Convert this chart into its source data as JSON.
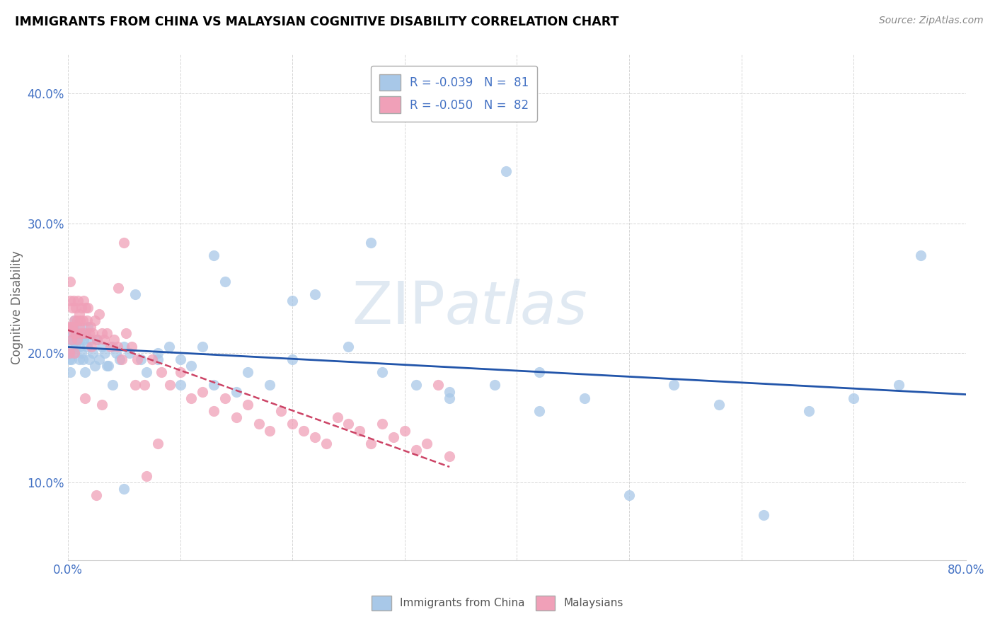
{
  "title": "IMMIGRANTS FROM CHINA VS MALAYSIAN COGNITIVE DISABILITY CORRELATION CHART",
  "source": "Source: ZipAtlas.com",
  "ylabel": "Cognitive Disability",
  "xlim": [
    0.0,
    0.8
  ],
  "ylim": [
    0.04,
    0.43
  ],
  "xticks": [
    0.0,
    0.1,
    0.2,
    0.3,
    0.4,
    0.5,
    0.6,
    0.7,
    0.8
  ],
  "yticks": [
    0.1,
    0.2,
    0.3,
    0.4
  ],
  "ytick_labels": [
    "10.0%",
    "20.0%",
    "30.0%",
    "40.0%"
  ],
  "legend_R1": "R = -0.039",
  "legend_N1": "N =  81",
  "legend_R2": "R = -0.050",
  "legend_N2": "N =  82",
  "color_china": "#a8c8e8",
  "color_malaysia": "#f0a0b8",
  "trendline_color_china": "#2255aa",
  "trendline_color_malaysia": "#cc4466",
  "background_color": "#ffffff",
  "china_x": [
    0.001,
    0.002,
    0.002,
    0.003,
    0.003,
    0.004,
    0.004,
    0.005,
    0.005,
    0.006,
    0.006,
    0.007,
    0.007,
    0.008,
    0.008,
    0.009,
    0.01,
    0.01,
    0.011,
    0.012,
    0.013,
    0.014,
    0.015,
    0.016,
    0.017,
    0.018,
    0.019,
    0.02,
    0.022,
    0.024,
    0.026,
    0.028,
    0.03,
    0.033,
    0.036,
    0.04,
    0.043,
    0.046,
    0.05,
    0.055,
    0.06,
    0.065,
    0.07,
    0.08,
    0.09,
    0.1,
    0.11,
    0.12,
    0.13,
    0.14,
    0.15,
    0.16,
    0.18,
    0.2,
    0.22,
    0.25,
    0.28,
    0.31,
    0.34,
    0.38,
    0.42,
    0.46,
    0.5,
    0.54,
    0.58,
    0.62,
    0.66,
    0.7,
    0.74,
    0.76,
    0.34,
    0.39,
    0.27,
    0.13,
    0.42,
    0.1,
    0.2,
    0.05,
    0.08,
    0.04,
    0.035
  ],
  "china_y": [
    0.195,
    0.2,
    0.185,
    0.21,
    0.195,
    0.215,
    0.205,
    0.22,
    0.21,
    0.225,
    0.2,
    0.215,
    0.205,
    0.22,
    0.21,
    0.215,
    0.205,
    0.195,
    0.21,
    0.2,
    0.195,
    0.21,
    0.185,
    0.215,
    0.205,
    0.22,
    0.195,
    0.21,
    0.2,
    0.19,
    0.21,
    0.195,
    0.205,
    0.2,
    0.19,
    0.205,
    0.2,
    0.195,
    0.205,
    0.2,
    0.245,
    0.195,
    0.185,
    0.195,
    0.205,
    0.175,
    0.19,
    0.205,
    0.175,
    0.255,
    0.17,
    0.185,
    0.175,
    0.195,
    0.245,
    0.205,
    0.185,
    0.175,
    0.17,
    0.175,
    0.155,
    0.165,
    0.09,
    0.175,
    0.16,
    0.075,
    0.155,
    0.165,
    0.175,
    0.275,
    0.165,
    0.34,
    0.285,
    0.275,
    0.185,
    0.195,
    0.24,
    0.095,
    0.2,
    0.175,
    0.19
  ],
  "malaysia_x": [
    0.001,
    0.001,
    0.002,
    0.002,
    0.003,
    0.003,
    0.004,
    0.004,
    0.005,
    0.005,
    0.006,
    0.006,
    0.007,
    0.007,
    0.008,
    0.008,
    0.009,
    0.01,
    0.01,
    0.011,
    0.012,
    0.012,
    0.013,
    0.014,
    0.015,
    0.016,
    0.017,
    0.018,
    0.019,
    0.02,
    0.021,
    0.022,
    0.024,
    0.026,
    0.028,
    0.03,
    0.032,
    0.035,
    0.038,
    0.041,
    0.044,
    0.048,
    0.052,
    0.057,
    0.062,
    0.068,
    0.075,
    0.083,
    0.091,
    0.1,
    0.11,
    0.12,
    0.13,
    0.14,
    0.15,
    0.16,
    0.17,
    0.18,
    0.19,
    0.2,
    0.21,
    0.22,
    0.23,
    0.24,
    0.25,
    0.26,
    0.27,
    0.28,
    0.29,
    0.3,
    0.31,
    0.32,
    0.33,
    0.34,
    0.07,
    0.025,
    0.03,
    0.06,
    0.045,
    0.015,
    0.05,
    0.08
  ],
  "malaysia_y": [
    0.2,
    0.22,
    0.255,
    0.24,
    0.22,
    0.21,
    0.235,
    0.22,
    0.24,
    0.215,
    0.225,
    0.2,
    0.215,
    0.235,
    0.225,
    0.21,
    0.24,
    0.22,
    0.23,
    0.225,
    0.215,
    0.235,
    0.225,
    0.24,
    0.215,
    0.235,
    0.225,
    0.235,
    0.215,
    0.22,
    0.205,
    0.215,
    0.225,
    0.21,
    0.23,
    0.215,
    0.21,
    0.215,
    0.205,
    0.21,
    0.205,
    0.195,
    0.215,
    0.205,
    0.195,
    0.175,
    0.195,
    0.185,
    0.175,
    0.185,
    0.165,
    0.17,
    0.155,
    0.165,
    0.15,
    0.16,
    0.145,
    0.14,
    0.155,
    0.145,
    0.14,
    0.135,
    0.13,
    0.15,
    0.145,
    0.14,
    0.13,
    0.145,
    0.135,
    0.14,
    0.125,
    0.13,
    0.175,
    0.12,
    0.105,
    0.09,
    0.16,
    0.175,
    0.25,
    0.165,
    0.285,
    0.13
  ]
}
